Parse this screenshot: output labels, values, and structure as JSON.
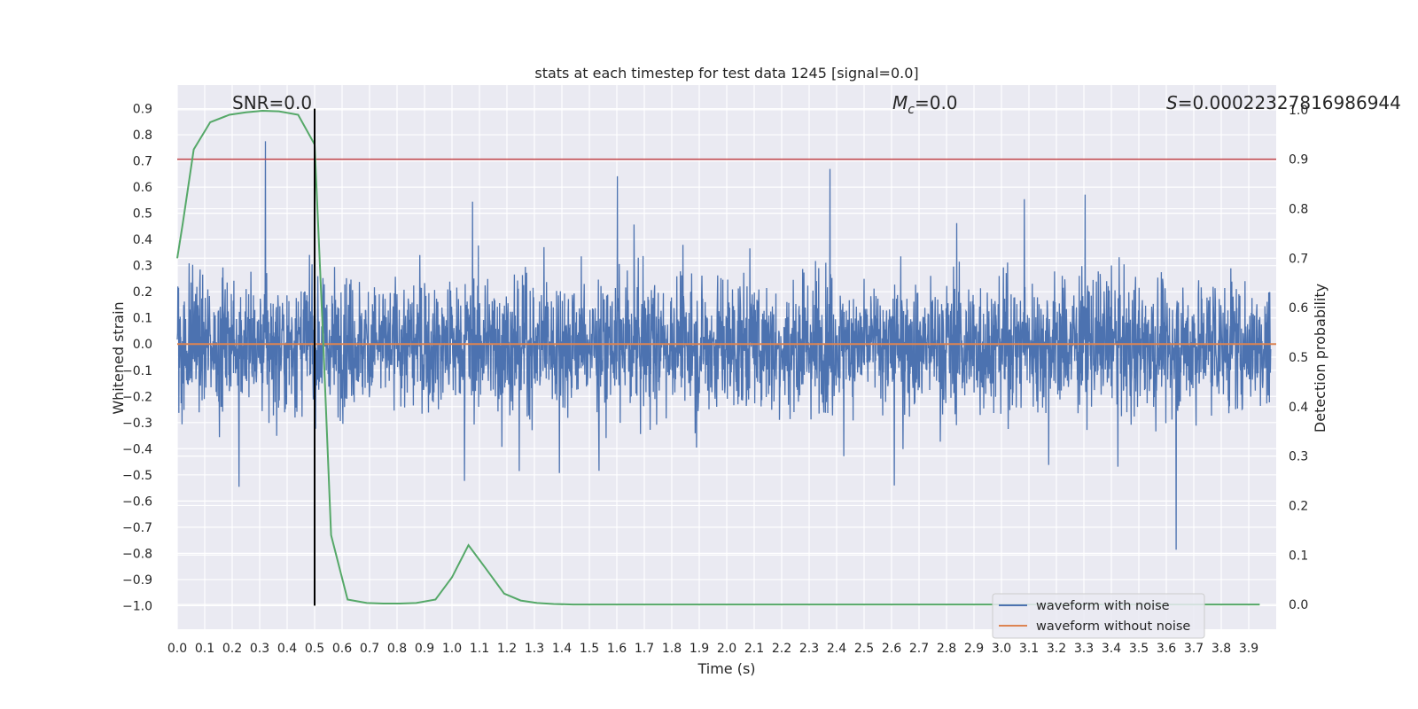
{
  "chart_data": {
    "type": "line",
    "title": "stats at each timestep for test data 1245 [signal=0.0]",
    "xlabel": "Time (s)",
    "ylabel": "Whitened strain",
    "ylabel_right": "Detection probability",
    "xlim": [
      0.0,
      4.0
    ],
    "ylim_left": [
      -1.09,
      0.99
    ],
    "ylim_right": [
      -0.05,
      1.05
    ],
    "x_ticks": [
      "0.0",
      "0.1",
      "0.2",
      "0.3",
      "0.4",
      "0.5",
      "0.6",
      "0.7",
      "0.8",
      "0.9",
      "1.0",
      "1.1",
      "1.2",
      "1.3",
      "1.4",
      "1.5",
      "1.6",
      "1.7",
      "1.8",
      "1.9",
      "2.0",
      "2.1",
      "2.2",
      "2.3",
      "2.4",
      "2.5",
      "2.6",
      "2.7",
      "2.8",
      "2.9",
      "3.0",
      "3.1",
      "3.2",
      "3.3",
      "3.4",
      "3.5",
      "3.6",
      "3.7",
      "3.8",
      "3.9"
    ],
    "y_ticks_left": [
      "−1.0",
      "−0.9",
      "−0.8",
      "−0.7",
      "−0.6",
      "−0.5",
      "−0.4",
      "−0.3",
      "−0.2",
      "−0.1",
      "0.0",
      "0.1",
      "0.2",
      "0.3",
      "0.4",
      "0.5",
      "0.6",
      "0.7",
      "0.8",
      "0.9"
    ],
    "y_ticks_right": [
      "0.0",
      "0.1",
      "0.2",
      "0.3",
      "0.4",
      "0.5",
      "0.6",
      "0.7",
      "0.8",
      "0.9",
      "1.0"
    ],
    "annotations": {
      "snr": "SNR=0.0",
      "mc_symbol": "M",
      "mc_sub": "c",
      "mc_value": "=0.0",
      "s_symbol": "S",
      "s_value": "=0.00022327816986944"
    },
    "series": [
      {
        "name": "waveform with noise",
        "color": "#4c72b0",
        "kind": "noise",
        "range_min": -1.0,
        "range_max": 0.9,
        "typical_amplitude": 0.35
      },
      {
        "name": "waveform without noise",
        "color": "#dd8452",
        "kind": "constant",
        "value": 0.0
      },
      {
        "color": "#55a868",
        "axis": "right",
        "x": [
          0.0,
          0.02,
          0.06,
          0.12,
          0.19,
          0.25,
          0.31,
          0.37,
          0.44,
          0.5,
          0.53,
          0.56,
          0.62,
          0.69,
          0.75,
          0.81,
          0.87,
          0.94,
          1.0,
          1.06,
          1.12,
          1.19,
          1.25,
          1.31,
          1.37,
          1.44,
          1.5,
          1.6,
          2.0,
          2.5,
          3.0,
          3.5,
          3.94
        ],
        "y": [
          0.7,
          0.77,
          0.92,
          0.975,
          0.99,
          0.995,
          0.998,
          0.997,
          0.99,
          0.93,
          0.55,
          0.14,
          0.01,
          0.003,
          0.002,
          0.002,
          0.003,
          0.01,
          0.055,
          0.12,
          0.075,
          0.022,
          0.008,
          0.003,
          0.001,
          0.0,
          0.0,
          0.0,
          0.0,
          0.0,
          0.0,
          0.0,
          0.0
        ]
      }
    ],
    "hlines": [
      {
        "axis": "right",
        "y": 0.9,
        "color": "#c44e52"
      }
    ],
    "vlines": [
      {
        "x": 0.5,
        "y_from": -1.0,
        "y_to": 0.9,
        "color": "#000000"
      }
    ],
    "grid": true,
    "legend_position": "lower right"
  }
}
